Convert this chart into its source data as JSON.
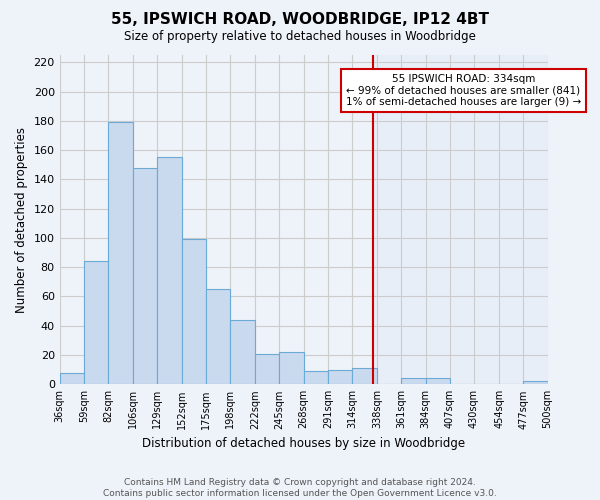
{
  "title": "55, IPSWICH ROAD, WOODBRIDGE, IP12 4BT",
  "subtitle": "Size of property relative to detached houses in Woodbridge",
  "xlabel": "Distribution of detached houses by size in Woodbridge",
  "ylabel": "Number of detached properties",
  "bar_edges": [
    36,
    59,
    82,
    106,
    129,
    152,
    175,
    198,
    222,
    245,
    268,
    291,
    314,
    338,
    361,
    384,
    407,
    430,
    454,
    477,
    500
  ],
  "bar_heights": [
    8,
    84,
    179,
    148,
    155,
    99,
    65,
    44,
    21,
    22,
    9,
    10,
    11,
    0,
    4,
    4,
    0,
    0,
    0,
    2
  ],
  "bar_color": "#c9d9ee",
  "bar_edge_color": "#6aaad4",
  "property_value": 334,
  "vline_color": "#cc0000",
  "ylim": [
    0,
    225
  ],
  "yticks": [
    0,
    20,
    40,
    60,
    80,
    100,
    120,
    140,
    160,
    180,
    200,
    220
  ],
  "annotation_title": "55 IPSWICH ROAD: 334sqm",
  "annotation_line1": "← 99% of detached houses are smaller (841)",
  "annotation_line2": "1% of semi-detached houses are larger (9) →",
  "annotation_box_color": "#ffffff",
  "annotation_box_edge": "#cc0000",
  "footer_line1": "Contains HM Land Registry data © Crown copyright and database right 2024.",
  "footer_line2": "Contains public sector information licensed under the Open Government Licence v3.0.",
  "background_color": "#eef2f9",
  "grid_color": "#cccccc",
  "right_bg_color": "#e8eef8"
}
